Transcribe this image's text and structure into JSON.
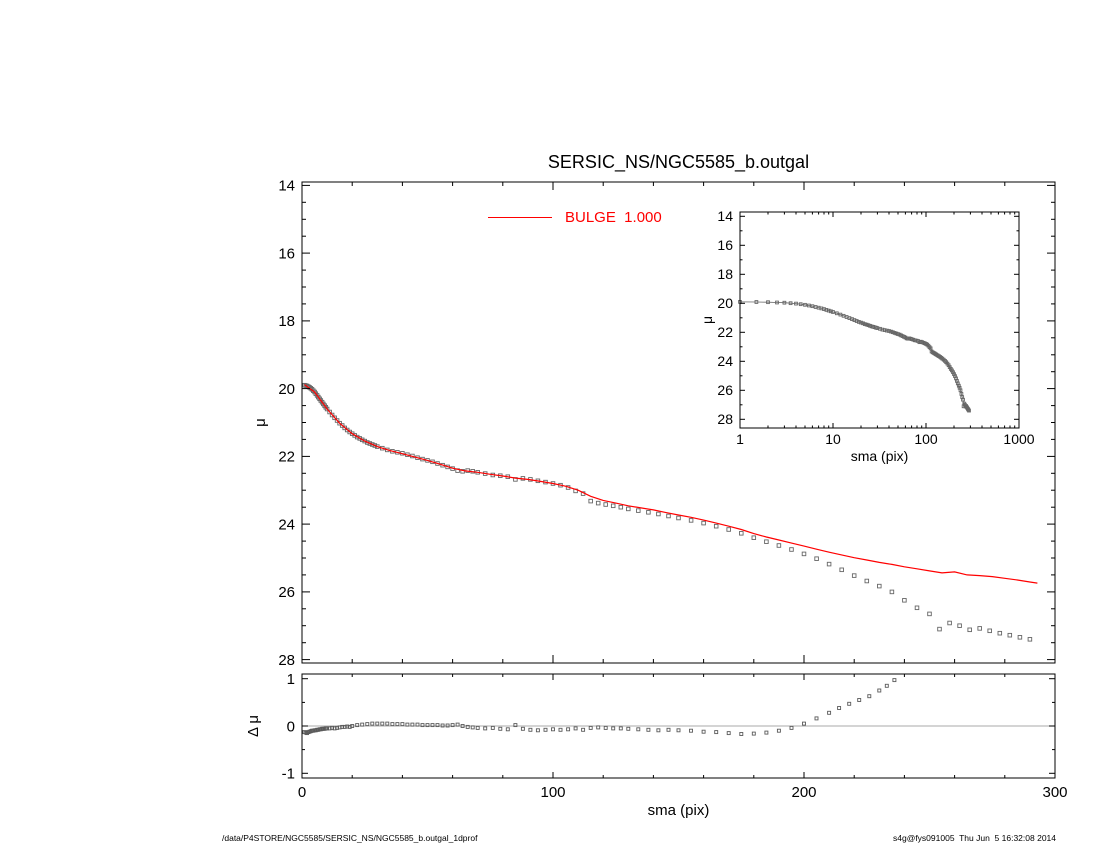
{
  "title": "SERSIC_NS/NGC5585_b.outgal",
  "legend": {
    "label": "BULGE  1.000",
    "color": "#ff0000"
  },
  "footer": {
    "left": "/data/P4STORE/NGC5585/SERSIC_NS/NGC5585_b.outgal_1dprof",
    "right": "s4g@fys091005  Thu Jun  5 16:32:08 2014"
  },
  "colors": {
    "background": "#ffffff",
    "axis": "#000000",
    "data_marker": "#666666",
    "model_line": "#ff0000",
    "zero_line": "#8c8c8c"
  },
  "chart_data": [
    {
      "id": "main",
      "type": "scatter",
      "title": "SERSIC_NS/NGC5585_b.outgal",
      "xlabel": "",
      "ylabel": "μ",
      "xscale": "linear",
      "xlim": [
        0,
        300
      ],
      "ylim": [
        13.9,
        28.1
      ],
      "y_direction": "increases-downward",
      "xticks": [
        0,
        100,
        200,
        300
      ],
      "yticks": [
        14,
        16,
        18,
        20,
        22,
        24,
        26,
        28
      ],
      "grid": false,
      "legend": {
        "label": "BULGE  1.000",
        "color": "#ff0000",
        "position": "top-center"
      },
      "series": [
        {
          "name": "profile-data",
          "style": "markers",
          "marker": "open-square",
          "color": "#666666",
          "size": 3.6,
          "x": [
            1,
            1.5,
            2,
            2.5,
            3,
            3.5,
            4,
            4.5,
            5,
            5.5,
            6,
            6.5,
            7,
            7.5,
            8,
            8.5,
            9,
            9.5,
            10,
            11,
            12,
            13,
            14,
            15,
            16,
            17,
            18,
            19,
            20,
            21,
            22,
            23,
            24,
            25,
            26,
            27,
            28,
            29,
            30,
            32,
            34,
            36,
            38,
            40,
            42,
            44,
            46,
            48,
            50,
            52,
            54,
            56,
            58,
            60,
            62,
            64,
            66,
            68,
            70,
            73,
            76,
            79,
            82,
            85,
            88,
            91,
            94,
            97,
            100,
            103,
            106,
            109,
            112,
            115,
            118,
            121,
            124,
            127,
            130,
            134,
            138,
            142,
            146,
            150,
            155,
            160,
            165,
            170,
            175,
            180,
            185,
            190,
            195,
            200,
            205,
            210,
            215,
            220,
            225,
            230,
            235,
            240,
            245,
            250,
            254,
            258,
            262,
            266,
            270,
            274,
            278,
            282,
            286,
            290
          ],
          "y": [
            19.9,
            19.91,
            19.92,
            19.94,
            19.96,
            19.99,
            20.02,
            20.06,
            20.1,
            20.15,
            20.2,
            20.25,
            20.3,
            20.35,
            20.4,
            20.45,
            20.5,
            20.55,
            20.6,
            20.69,
            20.78,
            20.86,
            20.94,
            21.02,
            21.09,
            21.16,
            21.22,
            21.28,
            21.33,
            21.38,
            21.43,
            21.47,
            21.51,
            21.55,
            21.59,
            21.62,
            21.65,
            21.68,
            21.71,
            21.76,
            21.81,
            21.85,
            21.88,
            21.91,
            21.95,
            21.99,
            22.04,
            22.08,
            22.12,
            22.16,
            22.21,
            22.26,
            22.31,
            22.36,
            22.42,
            22.44,
            22.42,
            22.44,
            22.47,
            22.51,
            22.55,
            22.57,
            22.6,
            22.68,
            22.65,
            22.68,
            22.72,
            22.76,
            22.8,
            22.85,
            22.92,
            23.02,
            23.1,
            23.32,
            23.38,
            23.42,
            23.46,
            23.5,
            23.55,
            23.6,
            23.65,
            23.7,
            23.76,
            23.82,
            23.89,
            23.97,
            24.06,
            24.16,
            24.27,
            24.4,
            24.52,
            24.63,
            24.75,
            24.88,
            25.02,
            25.18,
            25.35,
            25.52,
            25.68,
            25.83,
            26.0,
            26.25,
            26.47,
            26.65,
            27.1,
            26.92,
            27.0,
            27.12,
            27.08,
            27.15,
            27.22,
            27.28,
            27.34,
            27.4
          ]
        },
        {
          "name": "bulge-model",
          "style": "line",
          "color": "#ff0000",
          "width": 1.2,
          "x": [
            1,
            5,
            10,
            15,
            20,
            25,
            30,
            35,
            40,
            45,
            50,
            55,
            60,
            65,
            70,
            75,
            80,
            85,
            90,
            95,
            100,
            105,
            110,
            115,
            120,
            125,
            130,
            135,
            140,
            145,
            150,
            155,
            160,
            165,
            170,
            175,
            180,
            185,
            190,
            195,
            200,
            205,
            210,
            215,
            220,
            225,
            230,
            235,
            240,
            245,
            250,
            255,
            260,
            265,
            270,
            275,
            280,
            285,
            290,
            293
          ],
          "y": [
            19.88,
            20.1,
            20.6,
            21.02,
            21.33,
            21.55,
            21.71,
            21.83,
            21.92,
            22.02,
            22.12,
            22.23,
            22.35,
            22.43,
            22.47,
            22.53,
            22.58,
            22.64,
            22.68,
            22.74,
            22.8,
            22.88,
            23.0,
            23.18,
            23.3,
            23.38,
            23.46,
            23.52,
            23.58,
            23.66,
            23.73,
            23.8,
            23.88,
            23.97,
            24.06,
            24.16,
            24.28,
            24.38,
            24.47,
            24.56,
            24.65,
            24.74,
            24.83,
            24.91,
            24.99,
            25.06,
            25.13,
            25.19,
            25.26,
            25.32,
            25.38,
            25.44,
            25.41,
            25.5,
            25.52,
            25.55,
            25.6,
            25.65,
            25.71,
            25.74
          ]
        }
      ]
    },
    {
      "id": "inset",
      "type": "scatter",
      "xlabel": "sma (pix)",
      "ylabel": "μ",
      "xscale": "log",
      "xlim": [
        1,
        1000
      ],
      "ylim": [
        13.7,
        28.6
      ],
      "y_direction": "increases-downward",
      "xticks": [
        1,
        10,
        100,
        1000
      ],
      "yticks": [
        14,
        16,
        18,
        20,
        22,
        24,
        26,
        28
      ],
      "grid": false,
      "series": [
        {
          "name": "profile-data",
          "style": "line+markers",
          "marker": "open-square",
          "color": "#666666",
          "size": 2.8,
          "width": 0.8,
          "ref": [
            0,
            0
          ]
        }
      ]
    },
    {
      "id": "residual",
      "type": "scatter",
      "xlabel": "sma (pix)",
      "ylabel": "Δ μ",
      "xscale": "linear",
      "xlim": [
        0,
        300
      ],
      "ylim": [
        1.1,
        -1.1
      ],
      "xticks": [
        0,
        100,
        200,
        300
      ],
      "yticks": [
        1,
        0,
        -1
      ],
      "zero_line": true,
      "grid": false,
      "series": [
        {
          "name": "residuals",
          "style": "markers",
          "marker": "open-square",
          "color": "#5a5a5a",
          "size": 3.0,
          "x": [
            1,
            1.5,
            2,
            2.5,
            3,
            3.5,
            4,
            4.5,
            5,
            5.5,
            6,
            6.5,
            7,
            7.5,
            8,
            8.5,
            9,
            9.5,
            10,
            11,
            12,
            13,
            14,
            15,
            16,
            17,
            18,
            19,
            20,
            22,
            24,
            26,
            28,
            30,
            32,
            34,
            36,
            38,
            40,
            42,
            44,
            46,
            48,
            50,
            52,
            54,
            56,
            58,
            60,
            62,
            64,
            66,
            68,
            70,
            73,
            76,
            79,
            82,
            85,
            88,
            91,
            94,
            97,
            100,
            103,
            106,
            109,
            112,
            115,
            118,
            121,
            124,
            127,
            130,
            134,
            138,
            142,
            146,
            150,
            155,
            160,
            165,
            170,
            175,
            180,
            185,
            190,
            195,
            200,
            205,
            210,
            214,
            218,
            222,
            226,
            230,
            233,
            236
          ],
          "y": [
            -0.13,
            -0.14,
            -0.15,
            -0.13,
            -0.12,
            -0.11,
            -0.1,
            -0.1,
            -0.09,
            -0.09,
            -0.08,
            -0.08,
            -0.07,
            -0.07,
            -0.06,
            -0.06,
            -0.06,
            -0.05,
            -0.05,
            -0.05,
            -0.04,
            -0.05,
            -0.04,
            -0.03,
            -0.02,
            -0.02,
            -0.01,
            -0.02,
            0,
            0.02,
            0.03,
            0.04,
            0.05,
            0.05,
            0.05,
            0.05,
            0.04,
            0.04,
            0.04,
            0.03,
            0.03,
            0.03,
            0.02,
            0.02,
            0.02,
            0.02,
            0.01,
            0.01,
            0.02,
            0.03,
            0,
            -0.02,
            -0.03,
            -0.04,
            -0.05,
            -0.04,
            -0.06,
            -0.07,
            0.02,
            -0.06,
            -0.08,
            -0.09,
            -0.08,
            -0.07,
            -0.08,
            -0.07,
            -0.05,
            -0.08,
            -0.04,
            -0.03,
            -0.04,
            -0.05,
            -0.05,
            -0.06,
            -0.07,
            -0.08,
            -0.09,
            -0.08,
            -0.09,
            -0.1,
            -0.12,
            -0.13,
            -0.15,
            -0.17,
            -0.16,
            -0.14,
            -0.1,
            -0.04,
            0.05,
            0.16,
            0.28,
            0.38,
            0.47,
            0.55,
            0.63,
            0.75,
            0.85,
            0.97
          ]
        }
      ]
    }
  ]
}
